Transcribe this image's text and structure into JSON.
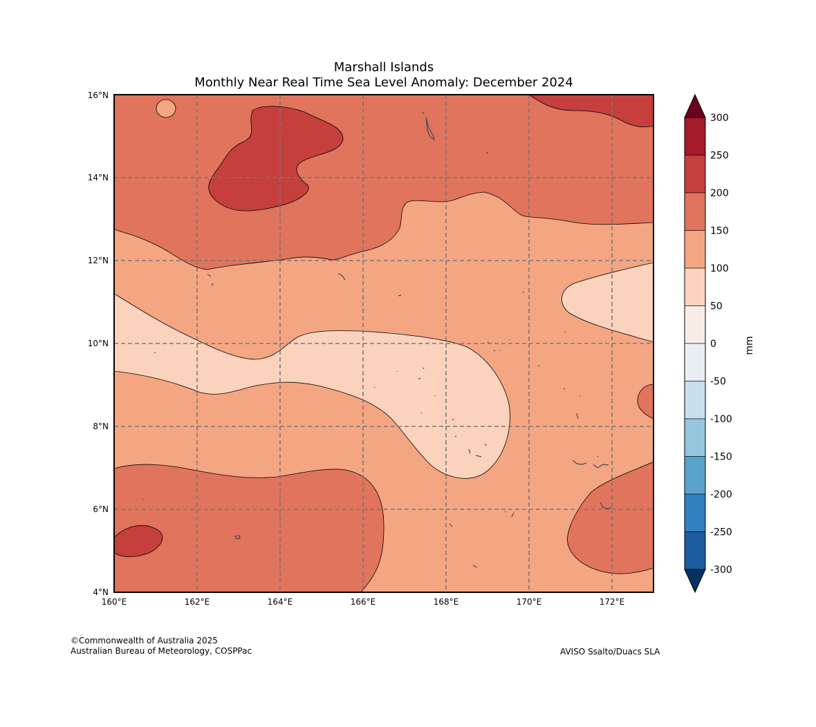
{
  "title_line1": "Marshall Islands",
  "title_line2": "Monthly Near Real Time Sea Level Anomaly: December 2024",
  "x_ticks": [
    "160°E",
    "162°E",
    "164°E",
    "166°E",
    "168°E",
    "170°E",
    "172°E"
  ],
  "y_ticks": [
    "16°N",
    "14°N",
    "12°N",
    "10°N",
    "8°N",
    "6°N",
    "4°N"
  ],
  "colorbar": {
    "unit": "mm",
    "labels": [
      "300",
      "250",
      "200",
      "150",
      "100",
      "50",
      "0",
      "-50",
      "-100",
      "-150",
      "-200",
      "-250",
      "-300"
    ],
    "colors": [
      "#a51a2b",
      "#c53f3c",
      "#e0745c",
      "#f4a683",
      "#fbd3bd",
      "#f7ece6",
      "#e8eff4",
      "#c8e0ed",
      "#94c6de",
      "#5aa3cf",
      "#3180bf",
      "#1b5d9f"
    ],
    "over_color": "#6b0020",
    "under_color": "#063263"
  },
  "credit_line1": "©Commonwealth of Australia 2025",
  "credit_line2": "Australian Bureau of Meteorology, COSPPac",
  "source": "AVISO Ssalto/Duacs SLA"
}
